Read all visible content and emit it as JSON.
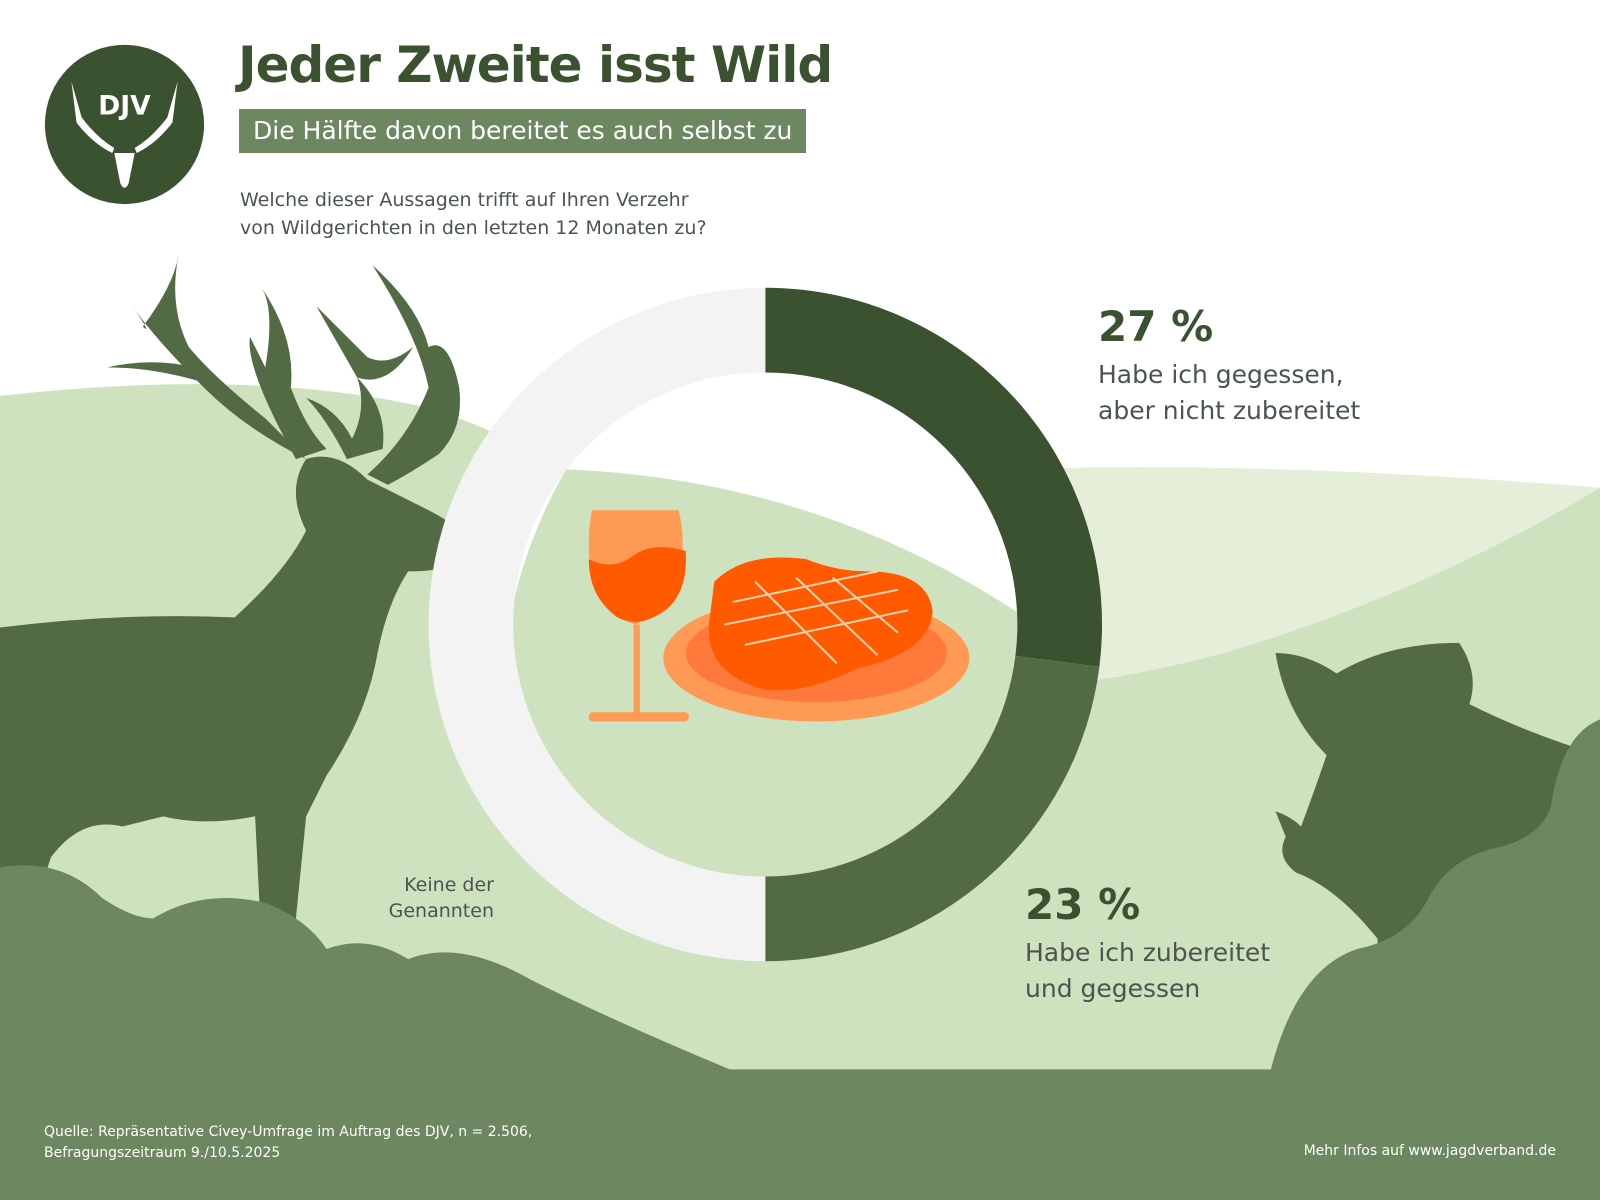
{
  "header": {
    "logo_text": "DJV",
    "title": "Jeder Zweite isst Wild",
    "subtitle": "Die Hälfte davon bereitet es auch selbst zu",
    "question_line1": "Welche dieser Aussagen trifft auf Ihren Verzehr",
    "question_line2": "von Wildgerichten in den letzten 12 Monaten zu?"
  },
  "chart_data": {
    "type": "pie",
    "variant": "donut",
    "title": "Jeder Zweite isst Wild",
    "categories": [
      "Habe ich gegessen, aber nicht zubereitet",
      "Habe ich zubereitet und gegessen",
      "Keine der Genannten"
    ],
    "values": [
      27,
      23,
      null
    ],
    "unit": "%",
    "colors": [
      "#3a5230",
      "#526b44",
      "#f3f3f3"
    ],
    "labels": [
      {
        "pct": "27 %",
        "line1": "Habe ich gegessen,",
        "line2": "aber nicht zubereitet"
      },
      {
        "pct": "23 %",
        "line1": "Habe ich zubereitet",
        "line2": "und gegessen"
      },
      {
        "pct": "",
        "line1": "Keine der",
        "line2": "Genannten"
      }
    ]
  },
  "footer": {
    "source_line1": "Quelle: Repräsentative Civey-Umfrage im Auftrag des DJV, n = 2.506,",
    "source_line2": "Befragungszeitraum 9./10.5.2025",
    "more_info": "Mehr Infos auf www.jagdverband.de"
  },
  "colors": {
    "dark_green": "#3a5230",
    "mid_green": "#526b44",
    "bush_green": "#6d8760",
    "light_green": "#cfe2bf",
    "pale_green": "#e4eed8",
    "orange": "#ff5a00",
    "light_orange": "#ff9a55"
  }
}
